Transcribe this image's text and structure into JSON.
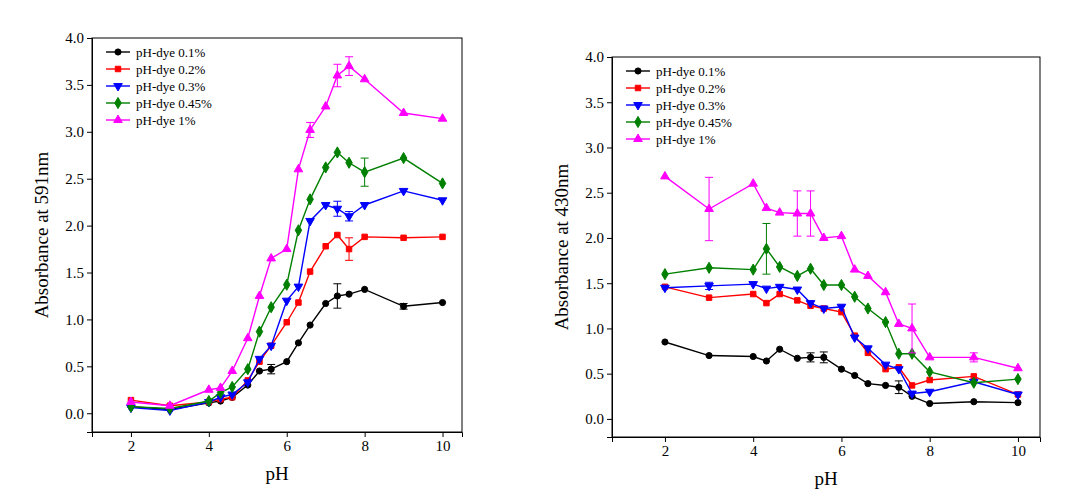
{
  "chart_data": [
    {
      "type": "line",
      "xlabel": "pH",
      "ylabel": "Absorbance at 591nm",
      "xlim": [
        1,
        10.5
      ],
      "ylim": [
        -0.2,
        4.0
      ],
      "xticks": [
        2,
        4,
        6,
        8,
        10
      ],
      "yticks": [
        {
          "value": 0,
          "label": "0.0"
        },
        {
          "value": 0.5,
          "label": "0.5"
        },
        {
          "value": 1,
          "label": "1.0"
        },
        {
          "value": 1.5,
          "label": "1.5"
        },
        {
          "value": 2,
          "label": "2.0"
        },
        {
          "value": 2.5,
          "label": "2.5"
        },
        {
          "value": 3,
          "label": "3.0"
        },
        {
          "value": 3.5,
          "label": "3.5"
        },
        {
          "value": 4,
          "label": "4.0"
        }
      ],
      "legend": "upper-left",
      "x": [
        2,
        3,
        4,
        4.3,
        4.6,
        5,
        5.3,
        5.6,
        6,
        6.3,
        6.6,
        7,
        7.3,
        7.6,
        8,
        9,
        10
      ],
      "series": [
        {
          "name": "pH-dye 0.1%",
          "color": "#000000",
          "marker": "circle",
          "values": [
            0.07,
            0.04,
            0.11,
            0.13,
            0.17,
            0.3,
            0.45,
            0.47,
            0.55,
            0.75,
            0.94,
            1.17,
            1.25,
            1.27,
            1.32,
            1.14,
            1.18
          ],
          "errors": [
            null,
            null,
            null,
            null,
            null,
            null,
            null,
            0.05,
            null,
            null,
            null,
            null,
            0.13,
            null,
            null,
            0.03,
            null
          ]
        },
        {
          "name": "pH-dye 0.2%",
          "color": "#ff0000",
          "marker": "square",
          "values": [
            0.14,
            0.08,
            0.12,
            0.15,
            0.17,
            0.35,
            0.55,
            0.72,
            0.97,
            1.18,
            1.51,
            1.78,
            1.9,
            1.75,
            1.88,
            1.87,
            1.88
          ],
          "errors": [
            null,
            null,
            null,
            null,
            null,
            null,
            null,
            null,
            null,
            null,
            null,
            null,
            null,
            0.12,
            null,
            null,
            null
          ]
        },
        {
          "name": "pH-dye 0.3%",
          "color": "#0000ff",
          "marker": "triangle-down",
          "values": [
            0.06,
            0.03,
            0.12,
            0.17,
            0.2,
            0.33,
            0.58,
            0.72,
            1.2,
            1.35,
            2.05,
            2.22,
            2.18,
            2.1,
            2.22,
            2.37,
            2.27
          ],
          "errors": [
            null,
            null,
            null,
            null,
            null,
            null,
            null,
            null,
            null,
            null,
            null,
            null,
            0.08,
            0.05,
            null,
            null,
            null
          ]
        },
        {
          "name": "pH-dye 0.45%",
          "color": "#008000",
          "marker": "diamond",
          "values": [
            0.07,
            0.05,
            0.13,
            0.22,
            0.28,
            0.47,
            0.87,
            1.13,
            1.37,
            1.95,
            2.28,
            2.62,
            2.78,
            2.67,
            2.57,
            2.72,
            2.45
          ],
          "errors": [
            null,
            null,
            null,
            null,
            null,
            null,
            null,
            null,
            null,
            null,
            null,
            null,
            null,
            null,
            0.15,
            null,
            null
          ]
        },
        {
          "name": "pH-dye 1%",
          "color": "#ff00ff",
          "marker": "triangle-up",
          "values": [
            0.12,
            0.08,
            0.25,
            0.27,
            0.45,
            0.8,
            1.25,
            1.65,
            1.75,
            2.6,
            3.02,
            3.27,
            3.6,
            3.7,
            3.56,
            3.2,
            3.14
          ],
          "errors": [
            null,
            null,
            null,
            null,
            null,
            null,
            null,
            null,
            null,
            null,
            0.08,
            null,
            0.12,
            0.1,
            null,
            null,
            null
          ]
        }
      ]
    },
    {
      "type": "line",
      "xlabel": "pH",
      "ylabel": "Absorbance at 430nm",
      "xlim": [
        0.8,
        10.5
      ],
      "ylim": [
        -0.2,
        4.0
      ],
      "xticks": [
        2,
        4,
        6,
        8,
        10
      ],
      "yticks": [
        {
          "value": 0,
          "label": "0.0"
        },
        {
          "value": 0.5,
          "label": "0.5"
        },
        {
          "value": 1,
          "label": "1.0"
        },
        {
          "value": 1.5,
          "label": "1.5"
        },
        {
          "value": 2,
          "label": "2.0"
        },
        {
          "value": 2.5,
          "label": "2.5"
        },
        {
          "value": 3,
          "label": "3.0"
        },
        {
          "value": 3.5,
          "label": "3.5"
        },
        {
          "value": 4,
          "label": "4.0"
        }
      ],
      "legend": "upper-left",
      "x": [
        2,
        3,
        4,
        4.3,
        4.6,
        5,
        5.3,
        5.6,
        6,
        6.3,
        6.6,
        7,
        7.3,
        7.6,
        8,
        9,
        10
      ],
      "series": [
        {
          "name": "pH-dye 0.1%",
          "color": "#000000",
          "marker": "circle",
          "values": [
            0.85,
            0.7,
            0.69,
            0.64,
            0.77,
            0.67,
            0.68,
            0.68,
            0.55,
            0.48,
            0.39,
            0.37,
            0.35,
            0.25,
            0.17,
            0.19,
            0.18
          ],
          "errors": [
            null,
            null,
            null,
            null,
            null,
            null,
            0.05,
            0.06,
            null,
            null,
            null,
            null,
            0.07,
            null,
            null,
            null,
            null
          ]
        },
        {
          "name": "pH-dye 0.2%",
          "color": "#ff0000",
          "marker": "square",
          "values": [
            1.46,
            1.34,
            1.38,
            1.28,
            1.38,
            1.31,
            1.25,
            1.22,
            1.18,
            0.92,
            0.73,
            0.55,
            0.57,
            0.37,
            0.43,
            0.47,
            0.27
          ],
          "errors": [
            null,
            null,
            null,
            null,
            null,
            null,
            null,
            null,
            null,
            null,
            null,
            null,
            null,
            null,
            null,
            null,
            null
          ]
        },
        {
          "name": "pH-dye 0.3%",
          "color": "#0000ff",
          "marker": "triangle-down",
          "values": [
            1.45,
            1.47,
            1.49,
            1.44,
            1.46,
            1.43,
            1.28,
            1.22,
            1.24,
            0.9,
            0.78,
            0.6,
            0.55,
            0.28,
            0.3,
            0.41,
            0.27
          ],
          "errors": [
            null,
            0.04,
            null,
            null,
            null,
            null,
            null,
            null,
            null,
            null,
            null,
            null,
            null,
            null,
            null,
            null,
            null
          ]
        },
        {
          "name": "pH-dye 0.45%",
          "color": "#008000",
          "marker": "diamond",
          "values": [
            1.6,
            1.67,
            1.65,
            1.88,
            1.68,
            1.58,
            1.66,
            1.48,
            1.48,
            1.35,
            1.22,
            1.07,
            0.72,
            0.72,
            0.52,
            0.4,
            0.44
          ],
          "errors": [
            null,
            null,
            null,
            0.28,
            null,
            null,
            null,
            null,
            null,
            null,
            null,
            null,
            null,
            null,
            null,
            null,
            null
          ]
        },
        {
          "name": "pH-dye 1%",
          "color": "#ff00ff",
          "marker": "triangle-up",
          "values": [
            2.68,
            2.32,
            2.6,
            2.33,
            2.28,
            2.27,
            2.27,
            2.0,
            2.02,
            1.65,
            1.58,
            1.4,
            1.05,
            1.0,
            0.68,
            0.68,
            0.56
          ],
          "errors": [
            null,
            0.35,
            null,
            null,
            null,
            0.25,
            0.25,
            null,
            null,
            null,
            null,
            null,
            null,
            0.27,
            null,
            0.05,
            null
          ]
        }
      ]
    }
  ]
}
